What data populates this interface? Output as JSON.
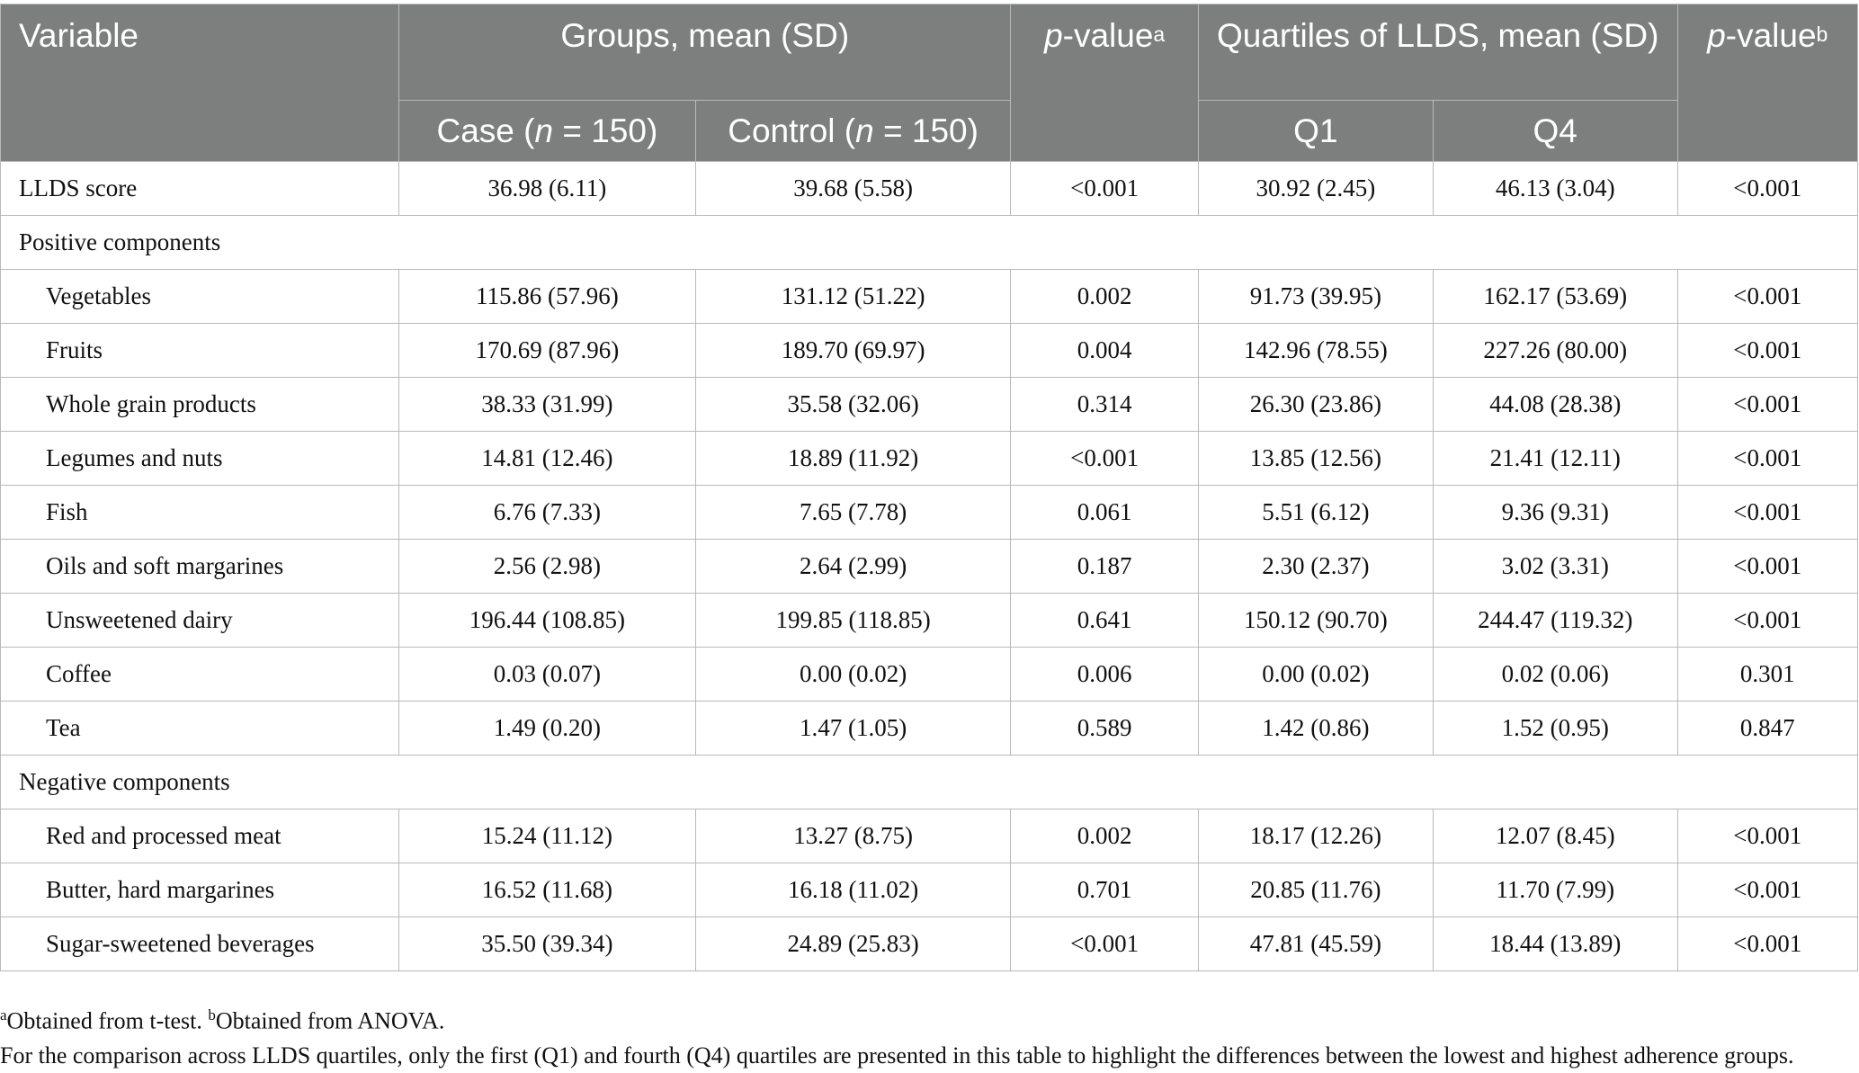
{
  "header": {
    "variable": "Variable",
    "groups": "Groups, mean (SD)",
    "case_pre": "Case (",
    "case_n": "n",
    "case_post": " = 150)",
    "control_pre": "Control (",
    "control_n": "n",
    "control_post": " = 150)",
    "p_italic": "p",
    "p_value_a_text": "-value",
    "p_value_a_sup": "a",
    "quartiles": "Quartiles of LLDS, mean (SD)",
    "q1": "Q1",
    "q4": "Q4",
    "p_value_b_text": "-value",
    "p_value_b_sup": "b"
  },
  "rows": [
    {
      "label": "LLDS score",
      "case": "36.98 (6.11)",
      "control": "39.68 (5.58)",
      "p_a": "<0.001",
      "q1": "30.92 (2.45)",
      "q4": "46.13 (3.04)",
      "p_b": "<0.001"
    },
    {
      "section": "Positive components"
    },
    {
      "label": "Vegetables",
      "case": "115.86 (57.96)",
      "control": "131.12 (51.22)",
      "p_a": "0.002",
      "q1": "91.73 (39.95)",
      "q4": "162.17 (53.69)",
      "p_b": "<0.001"
    },
    {
      "label": "Fruits",
      "case": "170.69 (87.96)",
      "control": "189.70 (69.97)",
      "p_a": "0.004",
      "q1": "142.96 (78.55)",
      "q4": "227.26 (80.00)",
      "p_b": "<0.001"
    },
    {
      "label": "Whole grain products",
      "case": "38.33 (31.99)",
      "control": "35.58 (32.06)",
      "p_a": "0.314",
      "q1": "26.30 (23.86)",
      "q4": "44.08 (28.38)",
      "p_b": "<0.001"
    },
    {
      "label": "Legumes and nuts",
      "case": "14.81 (12.46)",
      "control": "18.89 (11.92)",
      "p_a": "<0.001",
      "q1": "13.85 (12.56)",
      "q4": "21.41 (12.11)",
      "p_b": "<0.001"
    },
    {
      "label": "Fish",
      "case": "6.76 (7.33)",
      "control": "7.65 (7.78)",
      "p_a": "0.061",
      "q1": "5.51 (6.12)",
      "q4": "9.36 (9.31)",
      "p_b": "<0.001"
    },
    {
      "label": "Oils and soft margarines",
      "case": "2.56 (2.98)",
      "control": "2.64 (2.99)",
      "p_a": "0.187",
      "q1": "2.30 (2.37)",
      "q4": "3.02 (3.31)",
      "p_b": "<0.001"
    },
    {
      "label": "Unsweetened dairy",
      "case": "196.44 (108.85)",
      "control": "199.85 (118.85)",
      "p_a": "0.641",
      "q1": "150.12 (90.70)",
      "q4": "244.47 (119.32)",
      "p_b": "<0.001"
    },
    {
      "label": "Coffee",
      "case": "0.03 (0.07)",
      "control": "0.00 (0.02)",
      "p_a": "0.006",
      "q1": "0.00 (0.02)",
      "q4": "0.02 (0.06)",
      "p_b": "0.301"
    },
    {
      "label": "Tea",
      "case": "1.49 (0.20)",
      "control": "1.47 (1.05)",
      "p_a": "0.589",
      "q1": "1.42 (0.86)",
      "q4": "1.52 (0.95)",
      "p_b": "0.847"
    },
    {
      "section": "Negative components"
    },
    {
      "label": "Red and processed meat",
      "case": "15.24 (11.12)",
      "control": "13.27 (8.75)",
      "p_a": "0.002",
      "q1": "18.17 (12.26)",
      "q4": "12.07 (8.45)",
      "p_b": "<0.001"
    },
    {
      "label": "Butter, hard margarines",
      "case": "16.52 (11.68)",
      "control": "16.18 (11.02)",
      "p_a": "0.701",
      "q1": "20.85 (11.76)",
      "q4": "11.70 (7.99)",
      "p_b": "<0.001"
    },
    {
      "label": "Sugar-sweetened beverages",
      "case": "35.50 (39.34)",
      "control": "24.89 (25.83)",
      "p_a": "<0.001",
      "q1": "47.81 (45.59)",
      "q4": "18.44 (13.89)",
      "p_b": "<0.001"
    }
  ],
  "footnotes": {
    "a_sup": "a",
    "a_text": "Obtained from t-test. ",
    "b_sup": "b",
    "b_text": "Obtained from ANOVA.",
    "note": "For the comparison across LLDS quartiles, only the first (Q1) and fourth (Q4) quartiles are presented in this table to highlight the differences between the lowest and highest adherence groups."
  }
}
